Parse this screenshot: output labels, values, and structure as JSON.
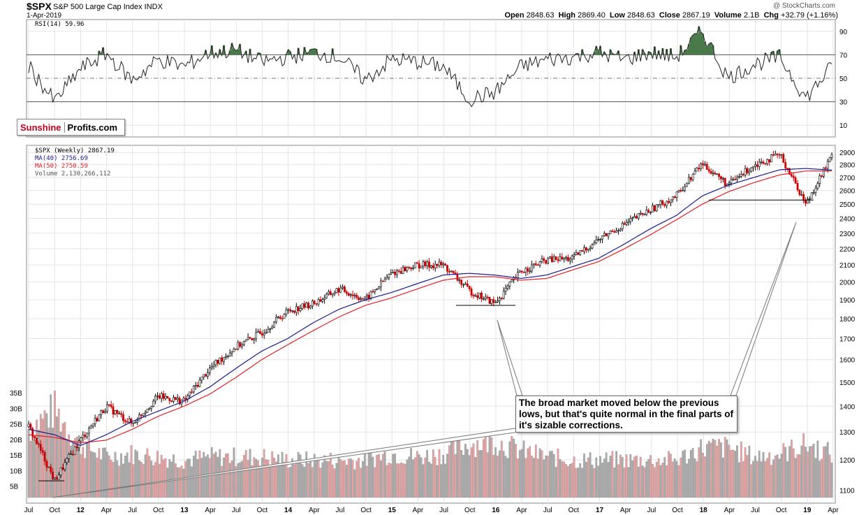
{
  "header": {
    "symbol": "$SPX",
    "index_name": "S&P 500 Large Cap Index  INDX",
    "date": "1-Apr-2019",
    "credit": "@ StockCharts.com",
    "open_label": "Open",
    "open": "2848.63",
    "high_label": "High",
    "high": "2869.40",
    "low_label": "Low",
    "low": "2848.63",
    "close_label": "Close",
    "close": "2867.19",
    "volume_label": "Volume",
    "volume": "2.1B",
    "chg_label": "Chg",
    "chg": "+32.79 (+1.16%)"
  },
  "rsi_panel": {
    "label": "RSI(14) 59.96"
  },
  "price_panel": {
    "legend": {
      "price": "$SPX (Weekly) 2867.19",
      "ma40": "MA(40) 2756.69",
      "ma50": "MA(50) 2750.59",
      "volume": "Volume 2,130,266,112"
    }
  },
  "logo": {
    "part1": "Sunshine",
    "part2": "Profits.com"
  },
  "annotation": {
    "text": "The broad market moved below the previous lows, but that's quite normal in the final parts of it's sizable corrections."
  },
  "colors": {
    "up": "#000000",
    "down": "#cc0000",
    "ma40": "#1a1a8c",
    "ma50": "#e0202a",
    "rsi_fill": "#4a7a4a",
    "volume_up": "#aaaaaa",
    "volume_down": "#e8a0a0"
  },
  "chart_data": {
    "type": "candlestick",
    "title": "$SPX (Weekly)",
    "x_tick_labels": [
      "Jul",
      "Oct",
      "12",
      "Apr",
      "Jul",
      "Oct",
      "13",
      "Apr",
      "Jul",
      "Oct",
      "14",
      "Apr",
      "Jul",
      "Oct",
      "15",
      "Apr",
      "Jul",
      "Oct",
      "16",
      "Apr",
      "Jul",
      "Oct",
      "17",
      "Apr",
      "Jul",
      "Oct",
      "18",
      "Apr",
      "Jul",
      "Oct",
      "19",
      "Apr"
    ],
    "price_axis": {
      "ticks": [
        1100,
        1200,
        1300,
        1400,
        1500,
        1600,
        1700,
        1800,
        1900,
        2000,
        2100,
        2200,
        2300,
        2400,
        2500,
        2600,
        2700,
        2800,
        2900
      ],
      "scale": "log"
    },
    "rsi_axis": {
      "ticks": [
        10,
        30,
        50,
        70,
        90
      ],
      "overbought": 70,
      "oversold": 30
    },
    "volume_axis": {
      "ticks": [
        "5B",
        "10B",
        "15B",
        "20B",
        "25B",
        "30B",
        "35B"
      ]
    },
    "price_series": [
      {
        "x": "Jul",
        "y": 1320
      },
      {
        "x": "Oct",
        "y": 1130
      },
      {
        "x": "12",
        "y": 1270
      },
      {
        "x": "Apr",
        "y": 1400
      },
      {
        "x": "Jul",
        "y": 1330
      },
      {
        "x": "Oct",
        "y": 1440
      },
      {
        "x": "13",
        "y": 1420
      },
      {
        "x": "Apr",
        "y": 1560
      },
      {
        "x": "Jul",
        "y": 1660
      },
      {
        "x": "Oct",
        "y": 1730
      },
      {
        "x": "14",
        "y": 1840
      },
      {
        "x": "Apr",
        "y": 1880
      },
      {
        "x": "Jul",
        "y": 1960
      },
      {
        "x": "Oct",
        "y": 1900
      },
      {
        "x": "15",
        "y": 2050
      },
      {
        "x": "Apr",
        "y": 2100
      },
      {
        "x": "Jul",
        "y": 2100
      },
      {
        "x": "Oct",
        "y": 1950
      },
      {
        "x": "16",
        "y": 1880
      },
      {
        "x": "Apr",
        "y": 2060
      },
      {
        "x": "Jul",
        "y": 2130
      },
      {
        "x": "Oct",
        "y": 2140
      },
      {
        "x": "17",
        "y": 2260
      },
      {
        "x": "Apr",
        "y": 2360
      },
      {
        "x": "Jul",
        "y": 2460
      },
      {
        "x": "Oct",
        "y": 2560
      },
      {
        "x": "18",
        "y": 2810
      },
      {
        "x": "Apr",
        "y": 2640
      },
      {
        "x": "Jul",
        "y": 2800
      },
      {
        "x": "Oct",
        "y": 2880
      },
      {
        "x": "19",
        "y": 2500
      },
      {
        "x": "Apr",
        "y": 2867
      }
    ],
    "ma40": [
      1310,
      1290,
      1250,
      1290,
      1340,
      1380,
      1420,
      1480,
      1560,
      1640,
      1700,
      1780,
      1850,
      1900,
      1940,
      1990,
      2040,
      2050,
      2040,
      2020,
      2040,
      2090,
      2140,
      2230,
      2330,
      2420,
      2560,
      2640,
      2700,
      2760,
      2770,
      2757
    ],
    "ma50": [
      1290,
      1280,
      1260,
      1270,
      1310,
      1360,
      1400,
      1450,
      1520,
      1600,
      1670,
      1740,
      1810,
      1870,
      1910,
      1960,
      2010,
      2030,
      2030,
      2010,
      2020,
      2070,
      2120,
      2200,
      2290,
      2390,
      2500,
      2590,
      2660,
      2720,
      2750,
      2751
    ],
    "rsi_series": [
      60,
      30,
      58,
      71,
      48,
      66,
      60,
      72,
      74,
      64,
      68,
      72,
      68,
      48,
      66,
      64,
      60,
      32,
      38,
      60,
      66,
      68,
      72,
      66,
      72,
      68,
      90,
      50,
      62,
      68,
      33,
      59.96
    ],
    "volume_series": [
      22,
      28,
      17,
      13,
      14,
      13,
      12,
      13,
      13,
      13,
      12,
      12,
      12,
      12,
      14,
      13,
      14,
      17,
      18,
      15,
      13,
      12,
      12,
      12,
      12,
      12,
      16,
      16,
      13,
      14,
      17,
      14
    ],
    "annotation_lines": [
      {
        "from": "Jul",
        "level": 1130
      },
      {
        "from": "Jul",
        "level": 1870
      },
      {
        "from": "18",
        "level": 2530
      }
    ]
  }
}
